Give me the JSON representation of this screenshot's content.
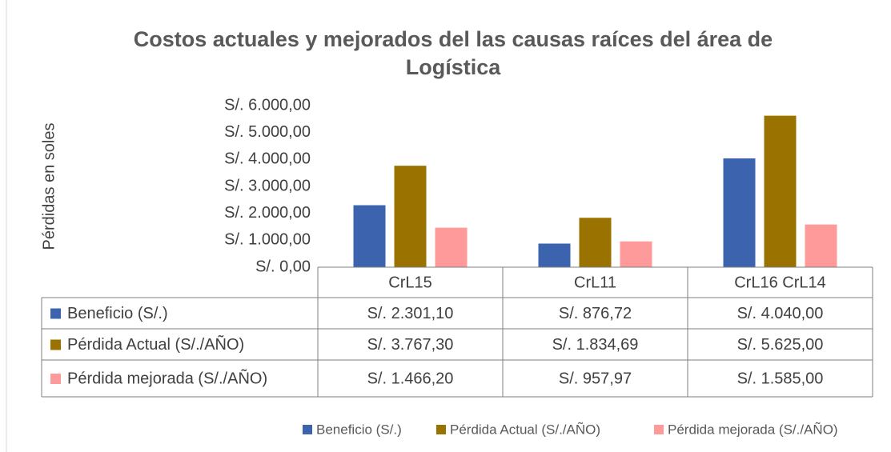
{
  "chart_data": {
    "type": "bar",
    "title": "Costos actuales y mejorados del las causas raíces del área de Logística",
    "y_label": "Pérdidas en soles",
    "categories": [
      "CrL15",
      "CrL11",
      "CrL16  CrL14"
    ],
    "series": [
      {
        "name": "Beneficio (S/.)",
        "color": "#3c64ae",
        "values": [
          2301.1,
          876.72,
          4040.0
        ],
        "value_labels": [
          "S/. 2.301,10",
          "S/. 876,72",
          "S/. 4.040,00"
        ]
      },
      {
        "name": "Pérdida Actual (S/./AÑO)",
        "color": "#9a7200",
        "values": [
          3767.3,
          1834.69,
          5625.0
        ],
        "value_labels": [
          "S/. 3.767,30",
          "S/. 1.834,69",
          "S/. 5.625,00"
        ]
      },
      {
        "name": "Pérdida mejorada (S/./AÑO)",
        "color": "#ff9a9a",
        "values": [
          1466.2,
          957.97,
          1585.0
        ],
        "value_labels": [
          "S/. 1.466,20",
          "S/. 957,97",
          "S/. 1.585,00"
        ]
      }
    ],
    "ylim": [
      0,
      6000
    ],
    "yticks": [
      {
        "value": 0,
        "label": "S/. 0,00"
      },
      {
        "value": 1000,
        "label": "S/. 1.000,00"
      },
      {
        "value": 2000,
        "label": "S/. 2.000,00"
      },
      {
        "value": 3000,
        "label": "S/. 3.000,00"
      },
      {
        "value": 4000,
        "label": "S/. 4.000,00"
      },
      {
        "value": 5000,
        "label": "S/. 5.000,00"
      },
      {
        "value": 6000,
        "label": "S/. 6.000,00"
      }
    ],
    "grid": false,
    "legend": "bottom"
  }
}
